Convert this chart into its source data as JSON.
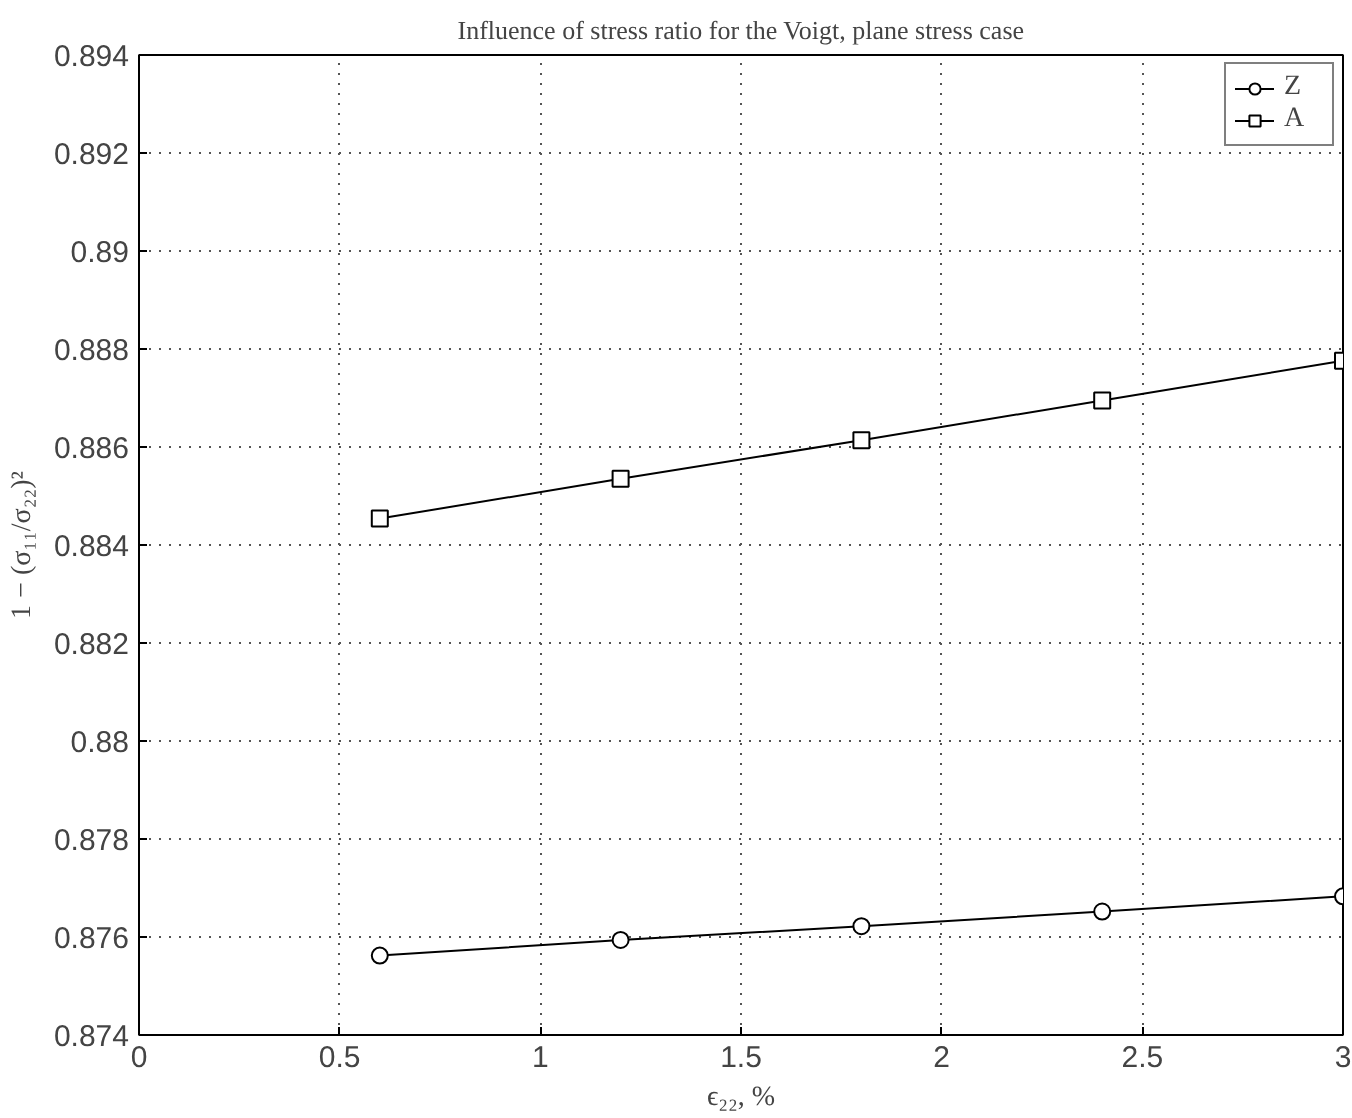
{
  "chart_data": {
    "type": "line",
    "title": "Influence of stress ratio for the Voigt, plane stress case",
    "xlabel": "ϵ₂₂, %",
    "ylabel": "1 − (σ₁₁/σ₂₂)²",
    "x": [
      0.6,
      1.2,
      1.8,
      2.4,
      3
    ],
    "series": [
      {
        "name": "Z",
        "color": "#000000",
        "marker": "circle",
        "values": [
          0.87562,
          0.87594,
          0.87622,
          0.87652,
          0.87683
        ]
      },
      {
        "name": "A",
        "color": "#000000",
        "marker": "square",
        "values": [
          0.88454,
          0.88535,
          0.88614,
          0.88695,
          0.88776
        ]
      }
    ],
    "xlim": [
      0,
      3
    ],
    "ylim": [
      0.874,
      0.894
    ],
    "xticks": [
      0,
      0.5,
      1,
      1.5,
      2,
      2.5,
      3
    ],
    "yticks": [
      0.874,
      0.876,
      0.878,
      0.88,
      0.882,
      0.884,
      0.886,
      0.888,
      0.89,
      0.892,
      0.894
    ],
    "grid": true,
    "legend": "top right",
    "line_style": "solid"
  }
}
